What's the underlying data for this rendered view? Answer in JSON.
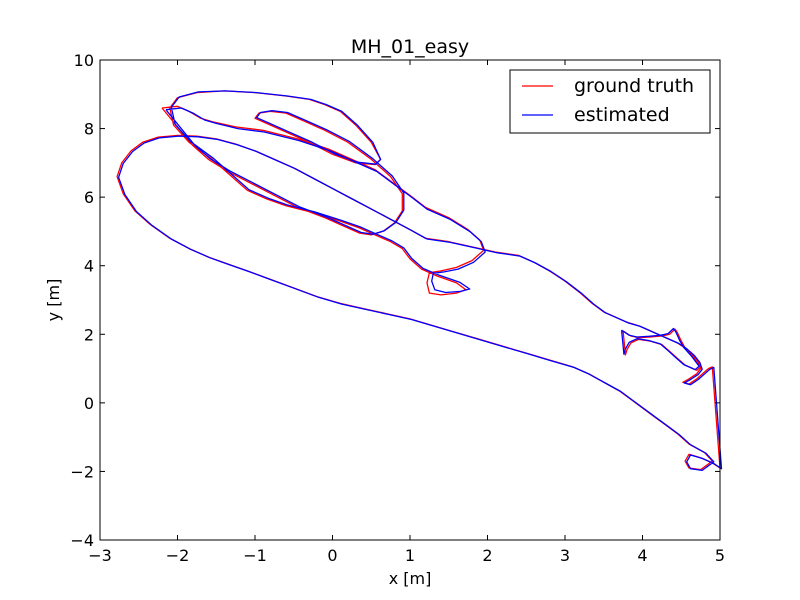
{
  "chart_data": {
    "type": "line",
    "title": "MH_01_easy",
    "xlabel": "x [m]",
    "ylabel": "y [m]",
    "xlim": [
      -3,
      5
    ],
    "ylim": [
      -4,
      10
    ],
    "xticks": [
      -3,
      -2,
      -1,
      0,
      1,
      2,
      3,
      4,
      5
    ],
    "yticks": [
      -4,
      -2,
      0,
      2,
      4,
      6,
      8,
      10
    ],
    "xtick_labels": [
      "−3",
      "−2",
      "−1",
      "0",
      "1",
      "2",
      "3",
      "4",
      "5"
    ],
    "ytick_labels": [
      "−4",
      "−2",
      "0",
      "2",
      "4",
      "6",
      "8",
      "10"
    ],
    "grid": false,
    "legend_position": "top-right",
    "series": [
      {
        "name": "ground truth",
        "color": "#ff0000",
        "x": [
          -2.2,
          -2.0,
          -1.85,
          -1.7,
          -1.55,
          -1.25,
          -0.9,
          -0.45,
          -0.05,
          0.3,
          0.55,
          0.7,
          0.85,
          1.0,
          1.2,
          1.5,
          1.75,
          1.9,
          1.95,
          1.8,
          1.6,
          1.4,
          1.25,
          1.22,
          1.25,
          1.4,
          1.6,
          1.72,
          1.6,
          1.35,
          1.15,
          1.0,
          0.9,
          0.75,
          0.55,
          0.35,
          0.1,
          -0.25,
          -0.6,
          -0.85,
          -1.1,
          -1.3,
          -1.55,
          -1.85,
          -2.05,
          -2.1,
          -2.0,
          -1.75,
          -1.4,
          -1.0,
          -0.6,
          -0.3,
          -0.1,
          0.1,
          0.3,
          0.5,
          0.62,
          0.55,
          0.3,
          0.0,
          -0.3,
          -0.6,
          -0.85,
          -1.0,
          -0.95,
          -0.8,
          -0.6,
          -0.35,
          -0.1,
          0.2,
          0.5,
          0.75,
          0.9,
          0.9,
          0.8,
          0.65,
          0.5,
          0.35,
          0.15,
          -0.1,
          -0.45,
          -0.75,
          -1.05,
          -1.35,
          -1.6,
          -1.8,
          -2.2
        ],
        "y": [
          8.6,
          8.65,
          8.5,
          8.3,
          8.2,
          8.05,
          7.95,
          7.7,
          7.4,
          7.05,
          6.8,
          6.55,
          6.3,
          6.05,
          5.7,
          5.4,
          5.05,
          4.75,
          4.45,
          4.15,
          3.95,
          3.85,
          3.8,
          3.5,
          3.2,
          3.15,
          3.2,
          3.3,
          3.5,
          3.7,
          3.9,
          4.2,
          4.5,
          4.7,
          4.9,
          5.1,
          5.3,
          5.55,
          5.75,
          5.95,
          6.2,
          6.6,
          7.1,
          7.6,
          8.1,
          8.6,
          8.9,
          9.05,
          9.1,
          9.05,
          8.95,
          8.85,
          8.7,
          8.5,
          8.1,
          7.6,
          7.1,
          6.95,
          7.0,
          7.25,
          7.6,
          7.9,
          8.15,
          8.3,
          8.45,
          8.5,
          8.45,
          8.2,
          7.95,
          7.6,
          7.1,
          6.6,
          6.1,
          5.6,
          5.25,
          5.0,
          4.9,
          4.95,
          5.15,
          5.4,
          5.7,
          6.05,
          6.4,
          6.75,
          7.1,
          7.5,
          8.6
        ]
      },
      {
        "name": "estimated",
        "color": "#0000ff",
        "x": [
          -2.15,
          -1.95,
          -1.8,
          -1.65,
          -1.5,
          -1.22,
          -0.88,
          -0.43,
          -0.03,
          0.32,
          0.57,
          0.72,
          0.87,
          1.02,
          1.22,
          1.52,
          1.77,
          1.92,
          1.97,
          1.82,
          1.62,
          1.44,
          1.3,
          1.28,
          1.32,
          1.46,
          1.65,
          1.77,
          1.64,
          1.38,
          1.17,
          1.02,
          0.92,
          0.77,
          0.57,
          0.37,
          0.12,
          -0.23,
          -0.58,
          -0.83,
          -1.08,
          -1.28,
          -1.53,
          -1.83,
          -2.03,
          -2.08,
          -1.98,
          -1.73,
          -1.38,
          -0.98,
          -0.58,
          -0.28,
          -0.08,
          0.12,
          0.32,
          0.52,
          0.62,
          0.56,
          0.32,
          0.02,
          -0.28,
          -0.58,
          -0.83,
          -0.98,
          -0.93,
          -0.78,
          -0.58,
          -0.33,
          -0.08,
          0.22,
          0.52,
          0.77,
          0.92,
          0.92,
          0.82,
          0.67,
          0.52,
          0.37,
          0.17,
          -0.08,
          -0.43,
          -0.73,
          -1.03,
          -1.33,
          -1.58,
          -1.78,
          -2.15
        ],
        "y": [
          8.55,
          8.6,
          8.45,
          8.25,
          8.15,
          8.0,
          7.9,
          7.65,
          7.35,
          7.0,
          6.75,
          6.5,
          6.25,
          6.0,
          5.65,
          5.35,
          5.0,
          4.7,
          4.4,
          4.1,
          3.9,
          3.82,
          3.78,
          3.55,
          3.3,
          3.22,
          3.25,
          3.32,
          3.52,
          3.72,
          3.92,
          4.22,
          4.52,
          4.72,
          4.92,
          5.12,
          5.32,
          5.57,
          5.77,
          5.97,
          6.22,
          6.62,
          7.12,
          7.62,
          8.12,
          8.62,
          8.92,
          9.07,
          9.1,
          9.05,
          8.95,
          8.85,
          8.7,
          8.5,
          8.1,
          7.6,
          7.1,
          6.96,
          7.02,
          7.27,
          7.62,
          7.92,
          8.17,
          8.32,
          8.47,
          8.52,
          8.47,
          8.22,
          7.97,
          7.62,
          7.12,
          6.62,
          6.12,
          5.62,
          5.27,
          5.02,
          4.92,
          4.97,
          5.17,
          5.42,
          5.72,
          6.07,
          6.42,
          6.77,
          7.12,
          7.52,
          8.55
        ]
      }
    ],
    "extra_paths": {
      "outer_loop": {
        "x": [
          1.2,
          1.5,
          1.8,
          2.1,
          2.4,
          2.6,
          2.8,
          3.0,
          3.2,
          3.35,
          3.5,
          3.65,
          3.8,
          3.95,
          4.1,
          4.25,
          4.35,
          4.45,
          4.55,
          4.65,
          4.72,
          4.75,
          4.7,
          4.6,
          4.52,
          4.6,
          4.7,
          4.8,
          4.85,
          4.9,
          5.0,
          4.9,
          4.75,
          4.6,
          4.55,
          4.6,
          4.75,
          4.9,
          4.8,
          4.6,
          4.45,
          4.3,
          4.15,
          4.0,
          3.85,
          3.7,
          3.5,
          3.3,
          3.1,
          2.8,
          2.5,
          2.2,
          1.9,
          1.6,
          1.3,
          1.0,
          0.7,
          0.4,
          0.1,
          -0.2,
          -0.5,
          -0.8,
          -1.1,
          -1.35,
          -1.6,
          -1.85,
          -2.1,
          -2.35,
          -2.55,
          -2.7,
          -2.78,
          -2.72,
          -2.6,
          -2.45,
          -2.25,
          -2.0,
          -1.75,
          -1.5,
          -1.25,
          -1.0,
          -0.75,
          -0.5,
          -0.25,
          0.0,
          0.25,
          0.5,
          0.75,
          1.0,
          1.2
        ],
        "y": [
          4.8,
          4.7,
          4.55,
          4.4,
          4.3,
          4.1,
          3.85,
          3.55,
          3.2,
          2.9,
          2.65,
          2.5,
          2.35,
          2.25,
          2.1,
          1.95,
          1.85,
          1.75,
          1.6,
          1.4,
          1.2,
          1.0,
          0.85,
          0.7,
          0.6,
          0.55,
          0.7,
          0.9,
          1.0,
          1.05,
          -1.9,
          -1.75,
          -1.6,
          -1.5,
          -1.7,
          -1.9,
          -1.95,
          -1.7,
          -1.45,
          -1.2,
          -0.9,
          -0.65,
          -0.4,
          -0.15,
          0.1,
          0.35,
          0.6,
          0.85,
          1.05,
          1.25,
          1.45,
          1.65,
          1.85,
          2.05,
          2.25,
          2.45,
          2.6,
          2.75,
          2.9,
          3.1,
          3.35,
          3.6,
          3.85,
          4.05,
          4.25,
          4.5,
          4.8,
          5.2,
          5.6,
          6.1,
          6.6,
          7.0,
          7.35,
          7.6,
          7.75,
          7.8,
          7.78,
          7.7,
          7.55,
          7.35,
          7.1,
          6.85,
          6.55,
          6.25,
          5.95,
          5.65,
          5.35,
          5.05,
          4.8
        ]
      },
      "right_hook": {
        "x": [
          3.75,
          3.85,
          3.95,
          4.1,
          4.25,
          4.35,
          4.42,
          4.45,
          4.5,
          4.55,
          4.65,
          4.75,
          4.7,
          4.55,
          4.45,
          4.35,
          4.25,
          4.1,
          3.95,
          3.85,
          3.8,
          3.78,
          3.75
        ],
        "y": [
          2.1,
          1.95,
          1.9,
          1.92,
          1.95,
          2.0,
          2.15,
          2.05,
          1.8,
          1.6,
          1.35,
          1.05,
          0.95,
          1.1,
          1.3,
          1.5,
          1.7,
          1.8,
          1.85,
          1.75,
          1.55,
          1.4,
          2.1
        ]
      }
    }
  }
}
